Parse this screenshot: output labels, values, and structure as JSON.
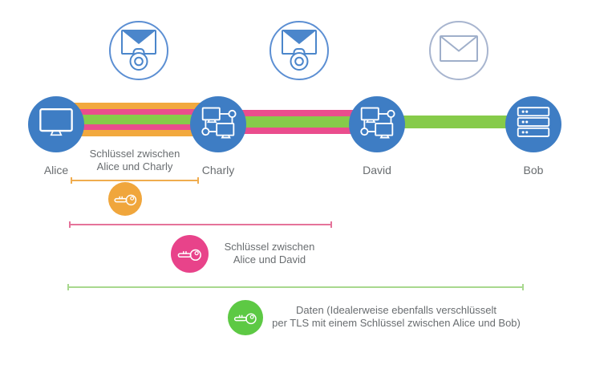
{
  "diagram": {
    "nodes": [
      {
        "label": "Alice",
        "icon": "desktop-computer"
      },
      {
        "label": "Charly",
        "icon": "network-nodes"
      },
      {
        "label": "David",
        "icon": "network-nodes"
      },
      {
        "label": "Bob",
        "icon": "server-rack"
      }
    ],
    "message_icons": [
      {
        "name": "envelope-with-lock",
        "locked": true
      },
      {
        "name": "envelope-with-lock",
        "locked": true
      },
      {
        "name": "envelope-plain",
        "locked": false
      }
    ],
    "segments": [
      {
        "from": "Alice",
        "to": "Charly",
        "stripes": [
          {
            "color": "#f2a93e",
            "h": 8
          },
          {
            "color": "#ea4d8d",
            "h": 7
          },
          {
            "color": "#86cb4a",
            "h": 12
          },
          {
            "color": "#ea4d8d",
            "h": 7
          },
          {
            "color": "#f2a93e",
            "h": 8
          }
        ]
      },
      {
        "from": "Charly",
        "to": "David",
        "stripes": [
          {
            "color": "#ea4d8d",
            "h": 8
          },
          {
            "color": "#86cb4a",
            "h": 14
          },
          {
            "color": "#ea4d8d",
            "h": 8
          }
        ]
      },
      {
        "from": "David",
        "to": "Bob",
        "stripes": [
          {
            "color": "#86cb4a",
            "h": 16
          }
        ]
      }
    ],
    "legends": [
      {
        "key_color": "#f0a63c",
        "line_color": "#f0ac4e",
        "line1": "Schlüssel zwischen",
        "line2": "Alice und Charly"
      },
      {
        "key_color": "#e8438a",
        "line_color": "#e5739a",
        "line1": "Schlüssel zwischen",
        "line2": "Alice und David"
      },
      {
        "key_color": "#5dc944",
        "line_color": "#a8d88e",
        "line1": "Daten (Idealerweise ebenfalls verschlüsselt",
        "line2": "per TLS mit einem Schlüssel zwischen Alice und Bob)"
      }
    ],
    "colors": {
      "node_blue": "#3e7dc4",
      "icon_stroke": "#ffffff",
      "envelope_blue": "#4b86cb",
      "envelope_gray_blue": "#9fafca",
      "text_gray": "#696d70"
    }
  }
}
